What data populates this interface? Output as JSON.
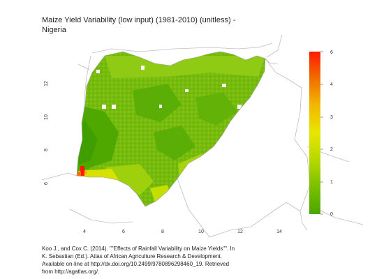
{
  "title": "Maize Yield Variability (low input) (1981-2010) (unitless) - Nigeria",
  "caption": "Koo J., and Cox C. (2014). \"\"Effects of Rainfall Variability on Maize Yields\"\". In K. Sebastian (Ed.). Atlas of African Agriculture Research & Development. Available on-line at http://dx.doi.org/10.2499/9780896298460_19. Retrieved from http://agatlas.org/.",
  "map": {
    "country": "Nigeria",
    "x_ticks": [
      "4",
      "6",
      "8",
      "10",
      "12",
      "14"
    ],
    "y_ticks": [
      "6",
      "8",
      "10",
      "12"
    ]
  },
  "legend": {
    "ticks": [
      "0",
      "1",
      "2",
      "3",
      "4",
      "5",
      "6"
    ],
    "min": 0,
    "max": 6,
    "colors": [
      "#4aa600",
      "#7cc000",
      "#b5d800",
      "#e8e600",
      "#f2b800",
      "#f07000",
      "#ff1a00"
    ]
  }
}
